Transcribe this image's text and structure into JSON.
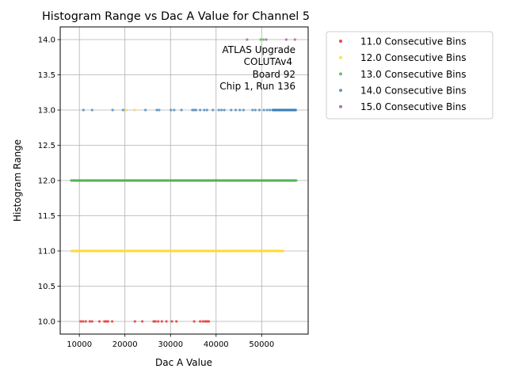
{
  "chart_data": {
    "type": "scatter",
    "title": "Histogram Range vs Dac A Value for Channel 5",
    "xlabel": "Dac A Value",
    "ylabel": "Histogram Range",
    "xlim": [
      5800,
      60200
    ],
    "ylim": [
      9.82,
      14.18
    ],
    "x_ticks": [
      10000,
      20000,
      30000,
      40000,
      50000
    ],
    "x_tick_labels": [
      "10000",
      "20000",
      "30000",
      "40000",
      "50000"
    ],
    "y_ticks": [
      10.0,
      10.5,
      11.0,
      11.5,
      12.0,
      12.5,
      13.0,
      13.5,
      14.0
    ],
    "y_tick_labels": [
      "10.0",
      "10.5",
      "11.0",
      "11.5",
      "12.0",
      "12.5",
      "13.0",
      "13.5",
      "14.0"
    ],
    "grid": true,
    "legend_position": "outside-right",
    "annotation": [
      "ATLAS Upgrade",
      "COLUTAv4",
      "Board 92",
      "Chip 1, Run 136"
    ],
    "series": [
      {
        "name": "11.0 Consecutive Bins",
        "color": "#e41a1c",
        "points": [
          [
            10300,
            10.0
          ],
          [
            10800,
            10.0
          ],
          [
            11400,
            10.0
          ],
          [
            12300,
            10.0
          ],
          [
            12800,
            10.0
          ],
          [
            14400,
            10.0
          ],
          [
            15500,
            10.0
          ],
          [
            15900,
            10.0
          ],
          [
            16300,
            10.0
          ],
          [
            17200,
            10.0
          ],
          [
            22200,
            10.0
          ],
          [
            23800,
            10.0
          ],
          [
            26300,
            10.0
          ],
          [
            26700,
            10.0
          ],
          [
            27300,
            10.0
          ],
          [
            28100,
            10.0
          ],
          [
            29100,
            10.0
          ],
          [
            30300,
            10.0
          ],
          [
            31300,
            10.0
          ],
          [
            35200,
            10.0
          ],
          [
            36500,
            10.0
          ],
          [
            37100,
            10.0
          ],
          [
            37600,
            10.0
          ],
          [
            38000,
            10.0
          ],
          [
            38400,
            10.0
          ]
        ]
      },
      {
        "name": "12.0 Consecutive Bins",
        "color": "#ffd92f",
        "range_min": 8300,
        "range_max": 54700,
        "y": 11.0,
        "extra_points": [
          [
            20300,
            13.0
          ],
          [
            22100,
            13.0
          ]
        ]
      },
      {
        "name": "13.0 Consecutive Bins",
        "color": "#4daf4a",
        "range_min": 8200,
        "range_max": 57600,
        "y": 12.0,
        "extra_points": [
          [
            49800,
            14.0
          ],
          [
            50400,
            14.0
          ]
        ]
      },
      {
        "name": "14.0 Consecutive Bins",
        "color": "#377eb8",
        "points": [
          [
            10900,
            13.0
          ],
          [
            12800,
            13.0
          ],
          [
            17300,
            13.0
          ],
          [
            19600,
            13.0
          ],
          [
            24500,
            13.0
          ],
          [
            27000,
            13.0
          ],
          [
            27500,
            13.0
          ],
          [
            30100,
            13.0
          ],
          [
            30800,
            13.0
          ],
          [
            32400,
            13.0
          ],
          [
            34800,
            13.0
          ],
          [
            35200,
            13.0
          ],
          [
            35600,
            13.0
          ],
          [
            36500,
            13.0
          ],
          [
            37400,
            13.0
          ],
          [
            38000,
            13.0
          ],
          [
            39300,
            13.0
          ],
          [
            40600,
            13.0
          ],
          [
            41200,
            13.0
          ],
          [
            41800,
            13.0
          ],
          [
            43300,
            13.0
          ],
          [
            44300,
            13.0
          ],
          [
            45200,
            13.0
          ],
          [
            46000,
            13.0
          ],
          [
            48000,
            13.0
          ],
          [
            48600,
            13.0
          ],
          [
            49500,
            13.0
          ],
          [
            50500,
            13.0
          ],
          [
            51200,
            13.0
          ],
          [
            51800,
            13.0
          ]
        ],
        "dense_range": [
          52400,
          57500
        ],
        "y": 13.0
      },
      {
        "name": "15.0 Consecutive Bins",
        "color": "#984ea3",
        "points": [
          [
            46800,
            14.0
          ],
          [
            51000,
            14.0
          ],
          [
            55400,
            14.0
          ],
          [
            57300,
            14.0
          ]
        ]
      }
    ]
  }
}
